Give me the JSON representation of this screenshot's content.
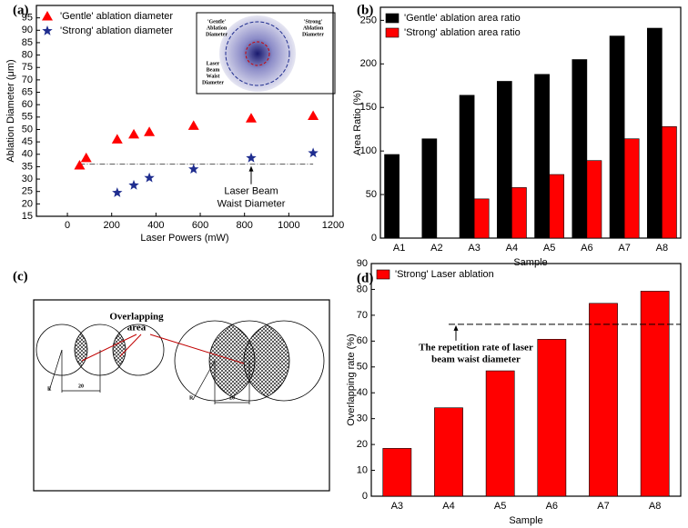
{
  "chart_data": [
    {
      "type": "scatter",
      "label": "(a)",
      "xlabel": "Laser Powers (mW)",
      "ylabel": "Ablation Diameter (μm)",
      "xlim": [
        -140,
        1200
      ],
      "xticks": [
        0,
        200,
        400,
        600,
        800,
        1000,
        1200
      ],
      "ylim": [
        15,
        100
      ],
      "yticks": [
        15,
        20,
        25,
        30,
        35,
        40,
        45,
        50,
        55,
        60,
        65,
        70,
        75,
        80,
        85,
        90,
        95
      ],
      "legend": "upper left",
      "series": [
        {
          "name": "'Gentle' ablation diameter",
          "color": "#ff0000",
          "marker": "triangle",
          "x": [
            55,
            85,
            225,
            300,
            370,
            570,
            830,
            1110
          ],
          "values": [
            35.5,
            38.5,
            46,
            48,
            49,
            51.5,
            54.5,
            55.5
          ]
        },
        {
          "name": "'Strong' ablation diameter",
          "color": "#1f2d8f",
          "marker": "star",
          "x": [
            225,
            300,
            370,
            570,
            830,
            1110
          ],
          "values": [
            24.5,
            27.5,
            30.5,
            34,
            38.5,
            40.5
          ]
        }
      ],
      "reference_line": 36,
      "annotation": [
        "Laser Beam",
        "Waist Diameter"
      ],
      "inset": {
        "labels": [
          [
            "'Gentle'",
            "Ablation",
            "Diameter"
          ],
          [
            "'Strong'",
            "Ablation",
            "Diameter"
          ],
          [
            "Laser",
            "Beam",
            "Waist",
            "Diameter"
          ]
        ]
      }
    },
    {
      "type": "bar",
      "label": "(b)",
      "xlabel": "Sample",
      "ylabel": "Area Ratio (%)",
      "categories": [
        "A1",
        "A2",
        "A3",
        "A4",
        "A5",
        "A6",
        "A7",
        "A8"
      ],
      "ylim": [
        0,
        265
      ],
      "yticks": [
        0,
        50,
        100,
        150,
        200,
        250
      ],
      "legend": "upper left",
      "series": [
        {
          "name": "'Gentle' ablation area ratio",
          "color": "#000000",
          "values": [
            96,
            114,
            164,
            180,
            188,
            205,
            232,
            241
          ]
        },
        {
          "name": "'Strong' ablation area ratio",
          "color": "#ff0000",
          "values": [
            null,
            null,
            45,
            58,
            73,
            89,
            114,
            128
          ]
        }
      ]
    },
    {
      "type": "bar",
      "label": "(d)",
      "xlabel": "Sample",
      "ylabel": "Overlapping rate (%)",
      "categories": [
        "A3",
        "A4",
        "A5",
        "A6",
        "A7",
        "A8"
      ],
      "ylim": [
        0,
        90
      ],
      "yticks": [
        0,
        10,
        20,
        30,
        40,
        50,
        60,
        70,
        80,
        90
      ],
      "legend": "upper left",
      "series": [
        {
          "name": "'Strong' Laser ablation",
          "color": "#ff0000",
          "values": [
            18.5,
            34.2,
            48.5,
            60.7,
            74.6,
            79.3
          ]
        }
      ],
      "reference_line": 66.5,
      "annotation": [
        "The repetition rate of laser",
        "beam waist diameter"
      ]
    }
  ],
  "diagram": {
    "label": "(c)",
    "title": [
      "Overlapping",
      "area"
    ],
    "r_labels": [
      "R",
      "R"
    ],
    "dim_labels": [
      "20",
      "20"
    ]
  }
}
